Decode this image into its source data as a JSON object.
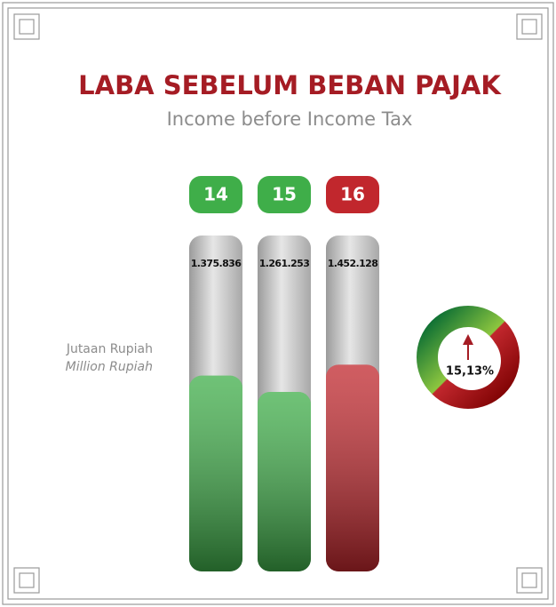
{
  "chart_data": {
    "type": "bar",
    "title": "LABA SEBELUM BEBAN PAJAK",
    "subtitle": "Income before Income Tax",
    "unit_label": "Jutaan Rupiah",
    "unit_label_en": "Million Rupiah",
    "categories": [
      "14",
      "15",
      "16"
    ],
    "values": [
      1375836,
      1261253,
      1452128
    ],
    "value_labels": [
      "1.375.836",
      "1.261.253",
      "1.452.128"
    ],
    "colors": [
      "#3fae49",
      "#3fae49",
      "#c1272d"
    ],
    "ylim": [
      0,
      2360000
    ],
    "annotation": "15,13%"
  }
}
